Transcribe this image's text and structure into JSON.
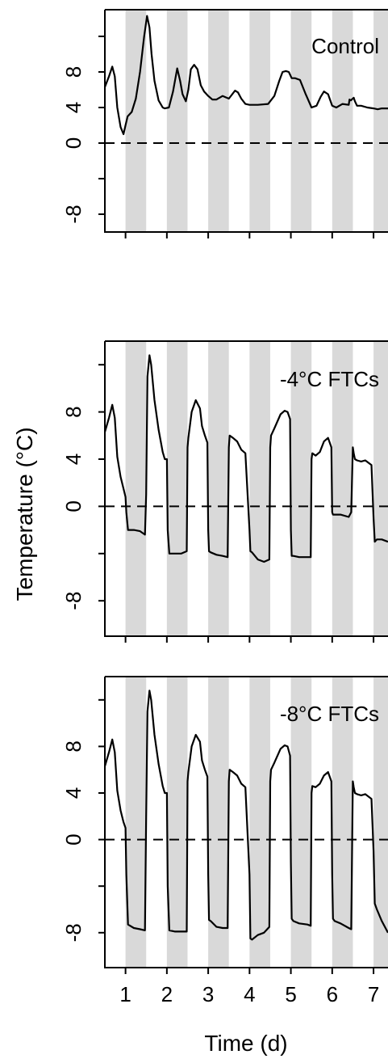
{
  "chart_data": {
    "type": "line",
    "xlabel": "Time (d)",
    "ylabel": "Temperature (°C)",
    "xlim": [
      0.5,
      7.35
    ],
    "x_ticks": [
      1,
      2,
      3,
      4,
      5,
      6,
      7
    ],
    "x_tick_labels": [
      "1",
      "2",
      "3",
      "4",
      "5",
      "6",
      "7"
    ],
    "y_tick_labels": [
      "-8",
      "0",
      "4",
      "8"
    ],
    "colors": {
      "line": "#000000",
      "night_band": "#d9d9d9",
      "reference_line": "#000000"
    },
    "night_bands": [
      [
        1.0,
        1.5
      ],
      [
        2.0,
        2.5
      ],
      [
        3.0,
        3.5
      ],
      [
        4.0,
        4.5
      ],
      [
        5.0,
        5.5
      ],
      [
        6.0,
        6.5
      ],
      [
        7.0,
        7.5
      ]
    ],
    "reference_line": {
      "y": 0,
      "style": "dashed"
    },
    "panels": [
      {
        "label": "Control",
        "ylim": [
          -10,
          15
        ],
        "y_ticks": [
          -8,
          -4,
          0,
          4,
          8,
          12
        ],
        "y_labeled_ticks": [
          -8,
          0,
          4,
          8
        ],
        "series": [
          {
            "x": [
              0.5,
              0.6,
              0.68,
              0.74,
              0.8,
              0.88,
              0.95,
              1.0,
              1.05,
              1.15,
              1.25,
              1.35,
              1.45,
              1.52,
              1.58,
              1.63,
              1.7,
              1.8,
              1.9,
              1.95,
              2.05,
              2.15,
              2.25,
              2.32,
              2.38,
              2.46,
              2.52,
              2.58,
              2.66,
              2.74,
              2.82,
              2.9,
              3.0,
              3.1,
              3.2,
              3.35,
              3.5,
              3.65,
              3.72,
              3.8,
              3.9,
              4.0,
              4.2,
              4.45,
              4.6,
              4.72,
              4.8,
              4.88,
              4.95,
              5.02,
              5.1,
              5.22,
              5.35,
              5.5,
              5.62,
              5.72,
              5.8,
              5.9,
              6.0,
              6.1,
              6.25,
              6.4,
              6.42,
              6.45,
              6.52,
              6.55,
              6.6,
              6.7,
              6.85,
              7.0,
              7.1,
              7.2,
              7.35
            ],
            "y": [
              6.3,
              7.5,
              8.6,
              7.5,
              4.0,
              1.8,
              1.0,
              2.0,
              3.0,
              3.5,
              5.0,
              8.0,
              12.0,
              14.3,
              13.0,
              10.0,
              7.0,
              4.8,
              4.0,
              3.9,
              4.0,
              5.8,
              8.4,
              7.0,
              5.5,
              4.7,
              6.0,
              8.3,
              8.8,
              8.3,
              6.5,
              5.8,
              5.3,
              4.9,
              4.9,
              5.3,
              5.0,
              5.9,
              5.7,
              5.0,
              4.4,
              4.3,
              4.3,
              4.4,
              5.3,
              7.0,
              8.0,
              8.1,
              8.0,
              7.3,
              7.3,
              7.1,
              5.6,
              4.0,
              4.2,
              5.2,
              5.8,
              5.5,
              4.2,
              4.0,
              4.4,
              4.3,
              4.9,
              4.8,
              5.1,
              4.7,
              4.2,
              4.2,
              4.0,
              3.9,
              3.8,
              3.9,
              3.9
            ]
          }
        ]
      },
      {
        "label": "-4°C FTCs",
        "ylim": [
          -11,
          14
        ],
        "y_ticks": [
          -8,
          -4,
          0,
          4,
          8,
          12
        ],
        "y_labeled_ticks": [
          -8,
          0,
          4,
          8
        ],
        "series": [
          {
            "x": [
              0.5,
              0.6,
              0.68,
              0.74,
              0.8,
              0.88,
              0.95,
              1.0,
              1.02,
              1.06,
              1.2,
              1.35,
              1.47,
              1.5,
              1.53,
              1.58,
              1.62,
              1.7,
              1.8,
              1.9,
              1.95,
              2.0,
              2.02,
              2.06,
              2.2,
              2.35,
              2.48,
              2.5,
              2.52,
              2.6,
              2.7,
              2.8,
              2.85,
              2.92,
              2.98,
              3.0,
              3.02,
              3.06,
              3.2,
              3.35,
              3.47,
              3.5,
              3.52,
              3.6,
              3.7,
              3.8,
              3.9,
              4.0,
              4.02,
              4.06,
              4.2,
              4.35,
              4.48,
              4.5,
              4.52,
              4.6,
              4.75,
              4.85,
              4.92,
              4.98,
              5.0,
              5.02,
              5.06,
              5.2,
              5.4,
              5.48,
              5.5,
              5.52,
              5.6,
              5.7,
              5.8,
              5.9,
              5.98,
              6.0,
              6.02,
              6.06,
              6.2,
              6.4,
              6.46,
              6.5,
              6.52,
              6.55,
              6.6,
              6.7,
              6.8,
              6.95,
              7.0,
              7.03,
              7.08,
              7.2,
              7.35
            ],
            "y": [
              6.3,
              7.5,
              8.6,
              7.5,
              4.2,
              2.5,
              1.5,
              0.8,
              -0.5,
              -2.0,
              -2.0,
              -2.1,
              -2.4,
              1.0,
              11.0,
              12.8,
              12.0,
              9.0,
              6.5,
              4.6,
              4.0,
              4.0,
              -2.0,
              -4.0,
              -4.0,
              -4.0,
              -3.8,
              5.0,
              5.8,
              8.0,
              9.0,
              8.3,
              6.8,
              6.0,
              5.4,
              -2.0,
              -3.8,
              -3.9,
              -4.1,
              -4.2,
              -4.3,
              5.0,
              6.0,
              5.8,
              5.5,
              4.8,
              4.5,
              -2.0,
              -3.8,
              -3.9,
              -4.5,
              -4.7,
              -4.5,
              5.0,
              6.0,
              6.6,
              7.8,
              8.1,
              8.0,
              7.4,
              -2.0,
              -4.2,
              -4.2,
              -4.3,
              -4.3,
              -4.3,
              4.0,
              4.5,
              4.3,
              4.6,
              5.5,
              5.8,
              5.0,
              -0.5,
              -0.7,
              -0.7,
              -0.7,
              -0.9,
              -0.5,
              5.0,
              4.5,
              4.0,
              3.9,
              3.8,
              3.9,
              3.5,
              -1.0,
              -3.0,
              -2.8,
              -2.8,
              -3.0
            ]
          }
        ]
      },
      {
        "label": "-8°C FTCs",
        "ylim": [
          -11,
          14
        ],
        "y_ticks": [
          -8,
          -4,
          0,
          4,
          8,
          12
        ],
        "y_labeled_ticks": [
          -8,
          0,
          4,
          8
        ],
        "series": [
          {
            "x": [
              0.5,
              0.6,
              0.68,
              0.74,
              0.8,
              0.88,
              0.95,
              1.0,
              1.02,
              1.06,
              1.2,
              1.35,
              1.47,
              1.5,
              1.53,
              1.58,
              1.62,
              1.7,
              1.8,
              1.9,
              1.95,
              2.0,
              2.02,
              2.06,
              2.2,
              2.35,
              2.48,
              2.5,
              2.52,
              2.6,
              2.7,
              2.8,
              2.85,
              2.92,
              2.98,
              3.0,
              3.02,
              3.06,
              3.2,
              3.35,
              3.47,
              3.5,
              3.52,
              3.6,
              3.7,
              3.8,
              3.9,
              4.0,
              4.02,
              4.06,
              4.2,
              4.35,
              4.48,
              4.5,
              4.52,
              4.6,
              4.75,
              4.85,
              4.92,
              4.98,
              5.0,
              5.02,
              5.06,
              5.2,
              5.4,
              5.48,
              5.5,
              5.52,
              5.6,
              5.7,
              5.8,
              5.9,
              5.98,
              6.0,
              6.02,
              6.06,
              6.2,
              6.4,
              6.46,
              6.5,
              6.52,
              6.55,
              6.6,
              6.7,
              6.8,
              6.95,
              7.0,
              7.03,
              7.08,
              7.2,
              7.35
            ],
            "y": [
              6.3,
              7.5,
              8.6,
              7.5,
              4.2,
              2.5,
              1.5,
              1.0,
              -3.0,
              -7.3,
              -7.6,
              -7.7,
              -7.8,
              2.0,
              11.0,
              12.8,
              12.0,
              9.0,
              6.5,
              4.6,
              4.0,
              4.0,
              -4.0,
              -7.8,
              -7.9,
              -7.9,
              -7.9,
              5.0,
              5.8,
              8.0,
              9.0,
              8.4,
              6.8,
              6.0,
              5.4,
              -3.0,
              -6.9,
              -7.0,
              -7.5,
              -7.6,
              -7.6,
              5.0,
              6.0,
              5.8,
              5.5,
              4.8,
              4.5,
              -3.0,
              -8.5,
              -8.6,
              -8.2,
              -8.0,
              -7.5,
              5.0,
              6.0,
              6.6,
              7.8,
              8.1,
              8.0,
              7.2,
              -2.0,
              -6.8,
              -7.0,
              -7.2,
              -7.3,
              -7.4,
              4.0,
              4.6,
              4.5,
              4.8,
              5.5,
              5.8,
              5.0,
              -3.0,
              -6.8,
              -7.0,
              -7.2,
              -7.6,
              -7.7,
              5.0,
              4.5,
              4.0,
              3.9,
              3.8,
              3.9,
              3.5,
              -1.0,
              -5.5,
              -6.0,
              -7.0,
              -8.0
            ]
          }
        ]
      }
    ]
  }
}
